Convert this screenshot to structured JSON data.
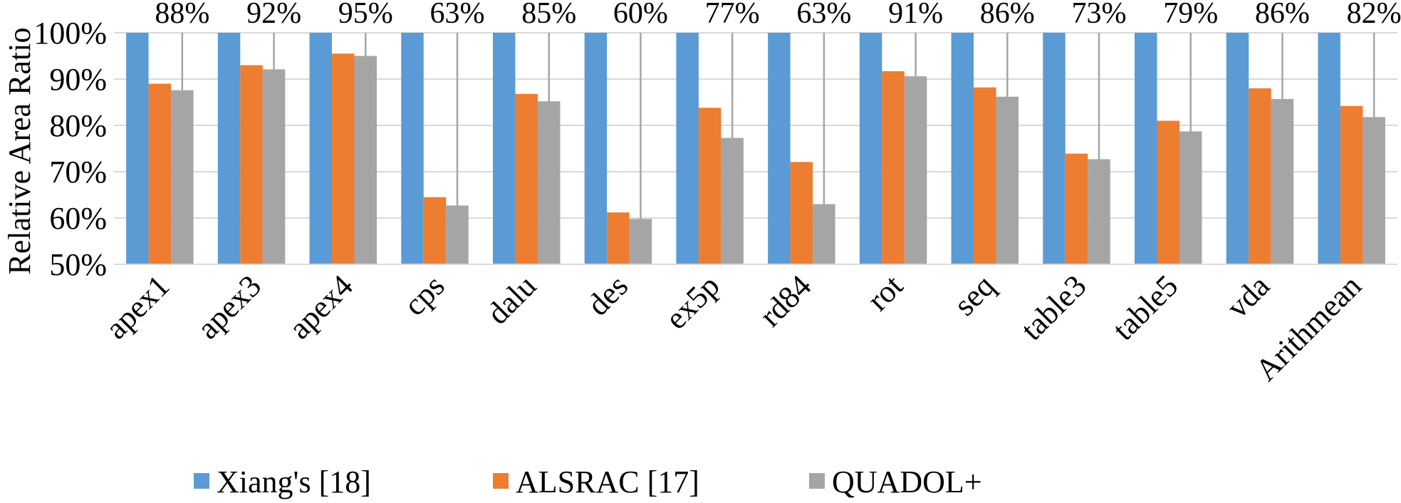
{
  "chart_data": {
    "type": "bar",
    "title": "",
    "xlabel": "",
    "ylabel": "Relative Area Ratio",
    "ylim": [
      0.5,
      1.0
    ],
    "yticks": [
      "50%",
      "60%",
      "70%",
      "80%",
      "90%",
      "100%"
    ],
    "categories": [
      "apex1",
      "apex3",
      "apex4",
      "cps",
      "dalu",
      "des",
      "ex5p",
      "rd84",
      "rot",
      "seq",
      "table3",
      "table5",
      "vda",
      "Arithmean"
    ],
    "series": [
      {
        "name": "Xiang's [18]",
        "color": "#5B9BD5",
        "values": [
          1.0,
          1.0,
          1.0,
          1.0,
          1.0,
          1.0,
          1.0,
          1.0,
          1.0,
          1.0,
          1.0,
          1.0,
          1.0,
          1.0
        ]
      },
      {
        "name": "ALSRAC [17]",
        "color": "#ED7D31",
        "values": [
          0.89,
          0.93,
          0.955,
          0.645,
          0.868,
          0.612,
          0.838,
          0.721,
          0.917,
          0.882,
          0.739,
          0.81,
          0.88,
          0.842
        ]
      },
      {
        "name": "QUADOL+",
        "color": "#A5A5A5",
        "values": [
          0.876,
          0.921,
          0.95,
          0.627,
          0.852,
          0.598,
          0.773,
          0.63,
          0.906,
          0.862,
          0.727,
          0.787,
          0.857,
          0.818
        ]
      }
    ],
    "annotations": [
      "88%",
      "92%",
      "95%",
      "63%",
      "85%",
      "60%",
      "77%",
      "63%",
      "91%",
      "86%",
      "73%",
      "79%",
      "86%",
      "82%"
    ],
    "grid": true,
    "legend_position": "bottom"
  }
}
